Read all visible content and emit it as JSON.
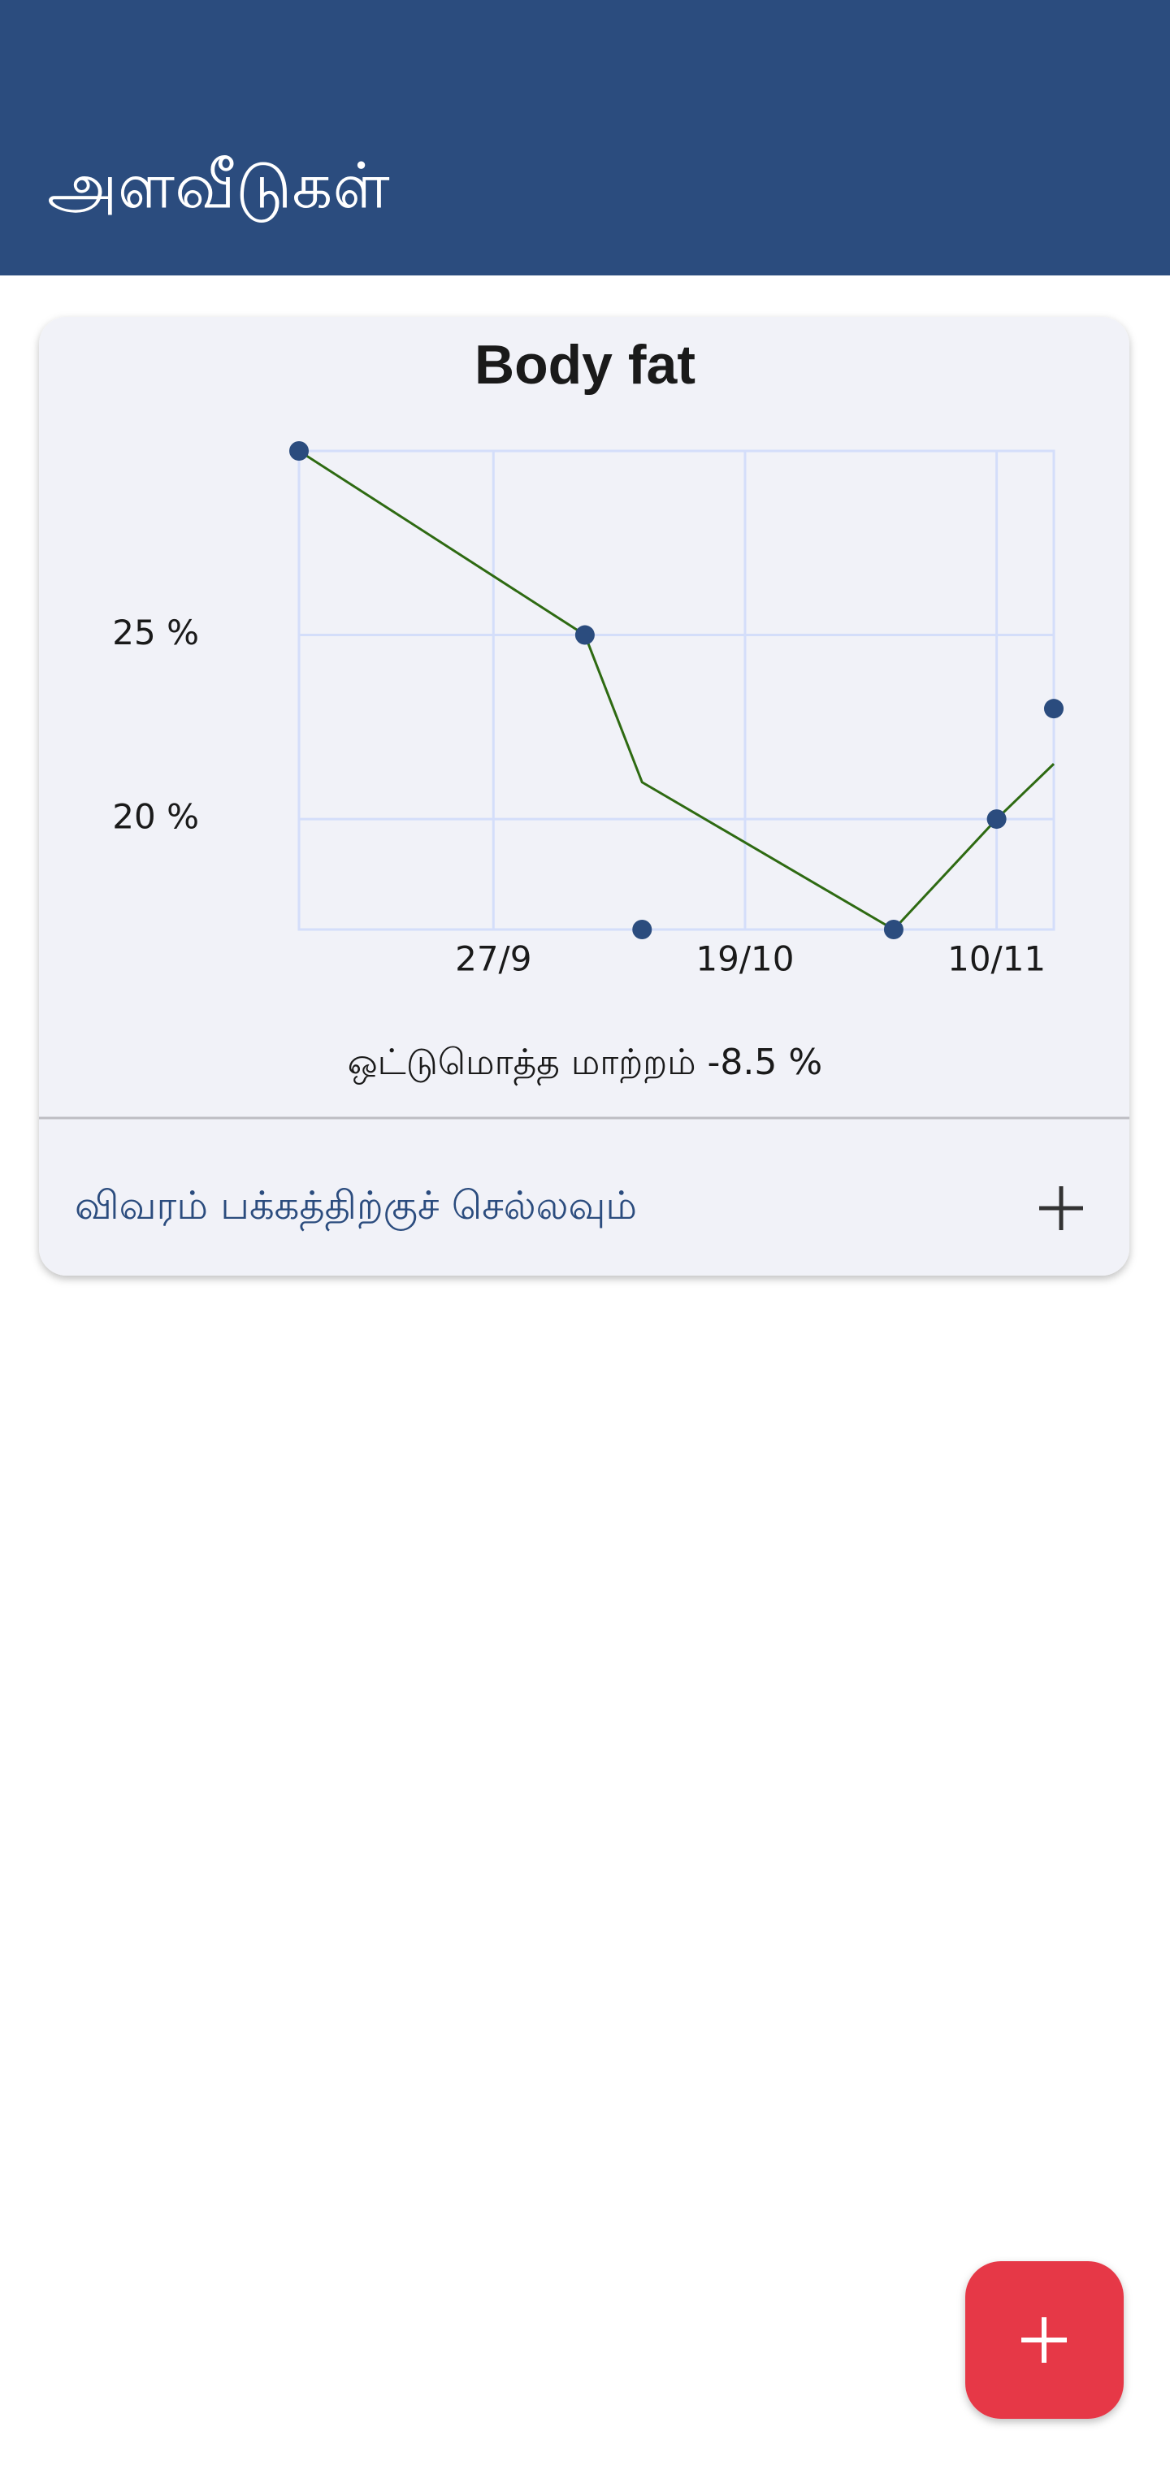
{
  "app_bar": {
    "title": "அளவீடுகள்"
  },
  "chart_data": {
    "type": "line",
    "title": "Body fat",
    "x": [
      "10/9",
      "5/10",
      "10/10",
      "1/11",
      "10/11",
      "15/11"
    ],
    "series": [
      {
        "type": "scatter",
        "color": "#2b4c7e",
        "values": [
          30,
          25,
          17,
          17,
          20,
          23
        ]
      },
      {
        "type": "line",
        "color": "#2e6a12",
        "values": [
          30,
          25,
          21,
          17,
          20,
          21.5
        ]
      }
    ],
    "xlim": [
      "10/9",
      "15/11"
    ],
    "xticks": [
      "27/9",
      "19/10",
      "10/11"
    ],
    "ylim": [
      17,
      30
    ],
    "yticks": [
      {
        "value": 20,
        "label": "20 %"
      },
      {
        "value": 25,
        "label": "25 %"
      }
    ],
    "grid": true
  },
  "card": {
    "summary": "ஒட்டுமொத்த மாற்றம் -8.5 %",
    "link": "விவரம் பக்கத்திற்குச் செல்லவும்"
  }
}
